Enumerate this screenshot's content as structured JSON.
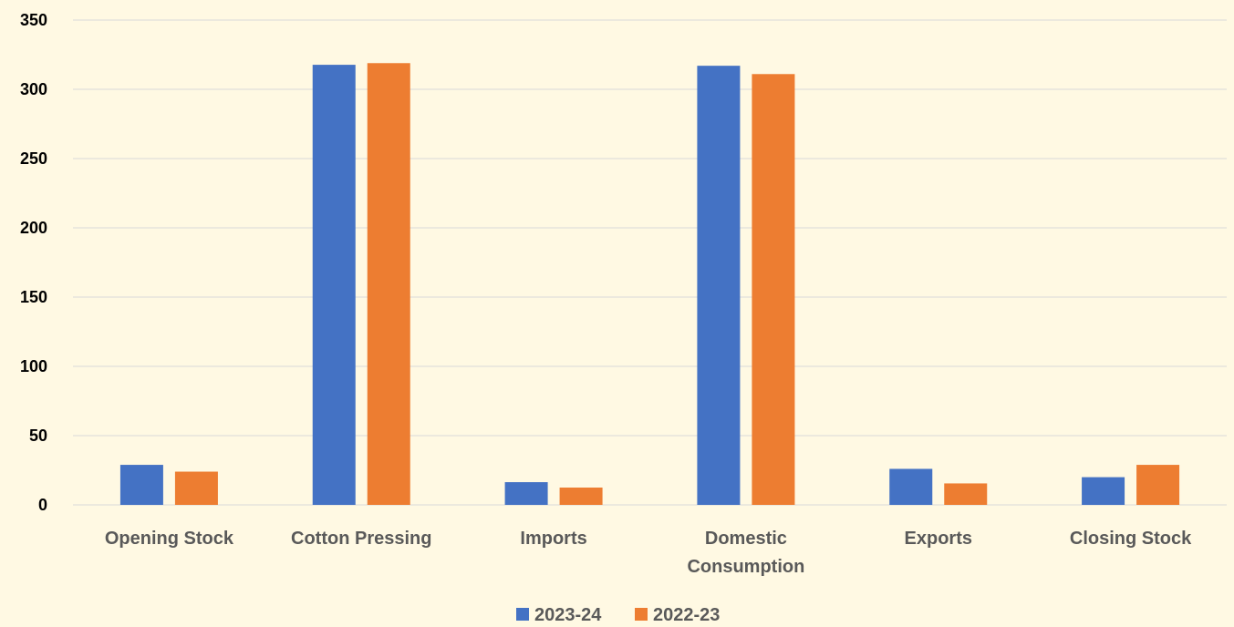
{
  "colors": {
    "background": "#fff9e3",
    "gridline": "#d9d9d9",
    "series_2023_24": "#4472c4",
    "series_2022_23": "#ed7d31"
  },
  "chart_data": {
    "type": "bar",
    "categories": [
      [
        "Opening Stock"
      ],
      [
        "Cotton Pressing"
      ],
      [
        "Imports"
      ],
      [
        "Domestic",
        "Consumption"
      ],
      [
        "Exports"
      ],
      [
        "Closing Stock"
      ]
    ],
    "series": [
      {
        "name": "2023-24",
        "color": "#4472c4",
        "values": [
          28.9,
          317.7,
          16.4,
          317.0,
          26.0,
          20.0
        ]
      },
      {
        "name": "2022-23",
        "color": "#ed7d31",
        "values": [
          24.0,
          318.9,
          12.5,
          311.0,
          15.5,
          28.9
        ]
      }
    ],
    "yticks": [
      "0",
      "50",
      "100",
      "150",
      "200",
      "250",
      "300",
      "350"
    ],
    "ylim": [
      0,
      350
    ],
    "title": "",
    "xlabel": "",
    "ylabel": "",
    "grid": true,
    "legend_position": "bottom"
  }
}
